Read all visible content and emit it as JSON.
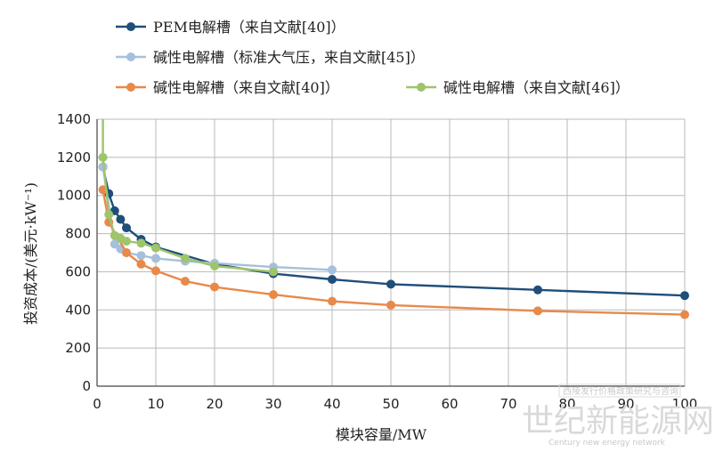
{
  "chart_data": {
    "type": "line",
    "title": "",
    "xlabel": "模块容量/MW",
    "ylabel": "投资成本/(美元·kW⁻¹)",
    "xlim": [
      0,
      100
    ],
    "ylim": [
      0,
      1400
    ],
    "xticks": [
      0,
      10,
      20,
      30,
      40,
      50,
      60,
      70,
      80,
      90,
      100
    ],
    "yticks": [
      0,
      200,
      400,
      600,
      800,
      1000,
      1200,
      1400
    ],
    "grid": true,
    "legend_position": "top",
    "series": [
      {
        "name": "PEM电解槽（来自文献[40]）",
        "color": "#1f4e79",
        "points": [
          [
            1,
            1150
          ],
          [
            2,
            1010
          ],
          [
            3,
            920
          ],
          [
            4,
            875
          ],
          [
            5,
            830
          ],
          [
            7.5,
            770
          ],
          [
            10,
            730
          ],
          [
            20,
            640
          ],
          [
            30,
            590
          ],
          [
            40,
            560
          ],
          [
            50,
            535
          ],
          [
            75,
            505
          ],
          [
            100,
            475
          ]
        ]
      },
      {
        "name": "碱性电解槽（标准大气压，来自文献[45]）",
        "color": "#a6c0dc",
        "points": [
          [
            1,
            1150
          ],
          [
            3,
            745
          ],
          [
            4,
            720
          ],
          [
            5,
            700
          ],
          [
            7.5,
            685
          ],
          [
            10,
            670
          ],
          [
            15,
            655
          ],
          [
            20,
            645
          ],
          [
            30,
            625
          ],
          [
            40,
            610
          ]
        ]
      },
      {
        "name": "碱性电解槽（来自文献[40]）",
        "color": "#e8894a",
        "points": [
          [
            1,
            1030
          ],
          [
            2,
            860
          ],
          [
            5,
            700
          ],
          [
            7.5,
            640
          ],
          [
            10,
            605
          ],
          [
            15,
            550
          ],
          [
            20,
            520
          ],
          [
            30,
            480
          ],
          [
            40,
            445
          ],
          [
            50,
            425
          ],
          [
            75,
            395
          ],
          [
            100,
            375
          ]
        ]
      },
      {
        "name": "碱性电解槽（来自文献[46]）",
        "color": "#9ec46c",
        "points": [
          [
            1,
            1200
          ],
          [
            2,
            900
          ],
          [
            3,
            790
          ],
          [
            4,
            775
          ],
          [
            5,
            760
          ],
          [
            7.5,
            750
          ],
          [
            10,
            725
          ],
          [
            15,
            670
          ],
          [
            20,
            630
          ],
          [
            30,
            600
          ]
        ]
      }
    ],
    "extras": {
      "green_line_start_above_axis": [
        [
          1,
          1400
        ]
      ]
    }
  },
  "watermark": {
    "top": "西陵发行价格政策研究与咨询",
    "main": "世纪新能源网",
    "sub": "Century new energy network"
  }
}
